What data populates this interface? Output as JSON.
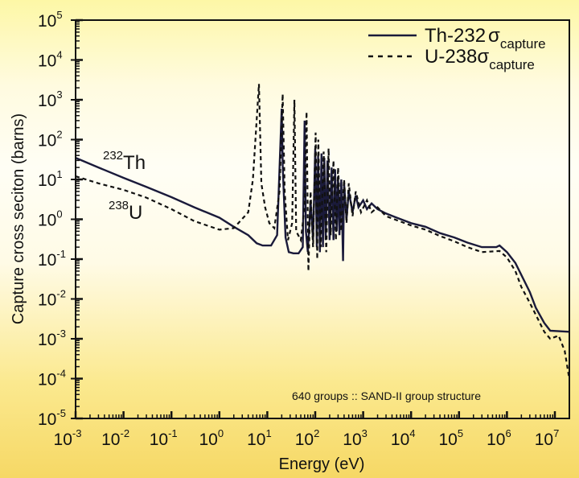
{
  "chart_data": {
    "type": "line",
    "title": "",
    "xlabel": "Energy (eV)",
    "ylabel": "Capture cross seciton (barns)",
    "xscale": "log",
    "yscale": "log",
    "xlim": [
      0.001,
      20000000
    ],
    "ylim": [
      1e-05,
      100000
    ],
    "x_ticks": [
      {
        "base": "10",
        "exp": "-3"
      },
      {
        "base": "10",
        "exp": "-2"
      },
      {
        "base": "10",
        "exp": "-1"
      },
      {
        "base": "10",
        "exp": "0"
      },
      {
        "base": "10",
        "exp": "1"
      },
      {
        "base": "10",
        "exp": "2"
      },
      {
        "base": "10",
        "exp": "3"
      },
      {
        "base": "10",
        "exp": "4"
      },
      {
        "base": "10",
        "exp": "5"
      },
      {
        "base": "10",
        "exp": "6"
      },
      {
        "base": "10",
        "exp": "7"
      }
    ],
    "y_ticks": [
      {
        "base": "10",
        "exp": "-5"
      },
      {
        "base": "10",
        "exp": "-4"
      },
      {
        "base": "10",
        "exp": "-3"
      },
      {
        "base": "10",
        "exp": "-2"
      },
      {
        "base": "10",
        "exp": "-1"
      },
      {
        "base": "10",
        "exp": "0"
      },
      {
        "base": "10",
        "exp": "1"
      },
      {
        "base": "10",
        "exp": "2"
      },
      {
        "base": "10",
        "exp": "3"
      },
      {
        "base": "10",
        "exp": "4"
      },
      {
        "base": "10",
        "exp": "5"
      }
    ],
    "grid": false,
    "legend_position": "top-right",
    "series": [
      {
        "name": "Th-232",
        "legend_label": "Th-232",
        "legend_sub": "capture",
        "style": "solid",
        "color": "#1a1a3a",
        "points": [
          [
            0.001,
            35
          ],
          [
            0.003,
            20
          ],
          [
            0.01,
            11
          ],
          [
            0.03,
            6.5
          ],
          [
            0.1,
            3.6
          ],
          [
            0.3,
            2.0
          ],
          [
            1,
            1.1
          ],
          [
            2,
            0.65
          ],
          [
            4,
            0.4
          ],
          [
            6,
            0.25
          ],
          [
            8,
            0.22
          ],
          [
            12,
            0.22
          ],
          [
            16,
            0.4
          ],
          [
            20,
            600
          ],
          [
            21,
            20
          ],
          [
            24,
            0.35
          ],
          [
            28,
            0.15
          ],
          [
            35,
            0.14
          ],
          [
            45,
            0.14
          ],
          [
            55,
            0.2
          ],
          [
            60,
            300
          ],
          [
            64,
            0.5
          ],
          [
            70,
            0.15
          ],
          [
            80,
            3
          ],
          [
            90,
            0.3
          ],
          [
            100,
            60
          ],
          [
            108,
            0.2
          ],
          [
            115,
            40
          ],
          [
            125,
            0.15
          ],
          [
            135,
            45
          ],
          [
            145,
            0.2
          ],
          [
            155,
            35
          ],
          [
            165,
            0.3
          ],
          [
            180,
            30
          ],
          [
            200,
            0.3
          ],
          [
            220,
            20
          ],
          [
            240,
            0.3
          ],
          [
            260,
            18
          ],
          [
            280,
            0.5
          ],
          [
            300,
            12
          ],
          [
            320,
            0.4
          ],
          [
            350,
            10
          ],
          [
            380,
            0.09
          ],
          [
            400,
            8
          ],
          [
            450,
            1.0
          ],
          [
            500,
            5
          ],
          [
            600,
            1.5
          ],
          [
            700,
            4
          ],
          [
            800,
            2
          ],
          [
            1000,
            3
          ],
          [
            1200,
            1.8
          ],
          [
            1500,
            2.5
          ],
          [
            2000,
            1.8
          ],
          [
            3000,
            1.4
          ],
          [
            5000,
            1.1
          ],
          [
            10000,
            0.8
          ],
          [
            20000,
            0.65
          ],
          [
            40000,
            0.45
          ],
          [
            80000,
            0.35
          ],
          [
            150000,
            0.26
          ],
          [
            300000,
            0.2
          ],
          [
            600000,
            0.2
          ],
          [
            700000,
            0.22
          ],
          [
            1000000,
            0.15
          ],
          [
            1500000,
            0.08
          ],
          [
            2000000,
            0.04
          ],
          [
            3000000,
            0.015
          ],
          [
            4000000,
            0.006
          ],
          [
            6000000,
            0.0025
          ],
          [
            8000000,
            0.0016
          ],
          [
            20000000,
            0.0015
          ]
        ]
      },
      {
        "name": "U-238",
        "legend_label": "U-238",
        "legend_sub": "capture",
        "style": "dashed",
        "color": "#111111",
        "points": [
          [
            0.001,
            12
          ],
          [
            0.003,
            8
          ],
          [
            0.01,
            5.5
          ],
          [
            0.03,
            3.5
          ],
          [
            0.1,
            1.8
          ],
          [
            0.3,
            0.9
          ],
          [
            1,
            0.55
          ],
          [
            2,
            0.6
          ],
          [
            4,
            1.5
          ],
          [
            5,
            10
          ],
          [
            6.7,
            2500
          ],
          [
            7.5,
            8
          ],
          [
            9,
            2
          ],
          [
            11,
            0.8
          ],
          [
            14,
            0.6
          ],
          [
            18,
            5
          ],
          [
            20.9,
            1400
          ],
          [
            23,
            5
          ],
          [
            27,
            0.3
          ],
          [
            33,
            0.8
          ],
          [
            36.7,
            1000
          ],
          [
            40,
            0.5
          ],
          [
            50,
            0.3
          ],
          [
            60,
            2
          ],
          [
            66,
            500
          ],
          [
            72,
            0.05
          ],
          [
            80,
            5
          ],
          [
            90,
            0.2
          ],
          [
            102,
            150
          ],
          [
            110,
            0.1
          ],
          [
            116,
            100
          ],
          [
            130,
            0.2
          ],
          [
            150,
            50
          ],
          [
            170,
            0.15
          ],
          [
            190,
            60
          ],
          [
            210,
            0.4
          ],
          [
            240,
            30
          ],
          [
            270,
            0.3
          ],
          [
            300,
            20
          ],
          [
            350,
            0.5
          ],
          [
            400,
            10
          ],
          [
            450,
            0.8
          ],
          [
            500,
            8
          ],
          [
            600,
            1.2
          ],
          [
            700,
            5
          ],
          [
            900,
            1.5
          ],
          [
            1200,
            3
          ],
          [
            1500,
            1.5
          ],
          [
            2000,
            2
          ],
          [
            3000,
            1.2
          ],
          [
            5000,
            0.95
          ],
          [
            10000,
            0.7
          ],
          [
            20000,
            0.55
          ],
          [
            40000,
            0.38
          ],
          [
            80000,
            0.28
          ],
          [
            150000,
            0.2
          ],
          [
            300000,
            0.15
          ],
          [
            700000,
            0.16
          ],
          [
            1000000,
            0.11
          ],
          [
            1500000,
            0.05
          ],
          [
            2000000,
            0.02
          ],
          [
            3000000,
            0.008
          ],
          [
            4000000,
            0.004
          ],
          [
            6000000,
            0.0015
          ],
          [
            8000000,
            0.001
          ],
          [
            12000000,
            0.0012
          ],
          [
            16000000,
            0.0005
          ],
          [
            20000000,
            0.0001
          ]
        ]
      }
    ],
    "annotations": [
      {
        "text": "640 groups :: SAND-II group structure",
        "position": "bottom-right"
      },
      {
        "sup": "232",
        "text": "Th",
        "label_for": "Th-232"
      },
      {
        "sup": "238",
        "text": "U",
        "label_for": "U-238"
      }
    ]
  },
  "legend": {
    "sigma": "σ"
  }
}
